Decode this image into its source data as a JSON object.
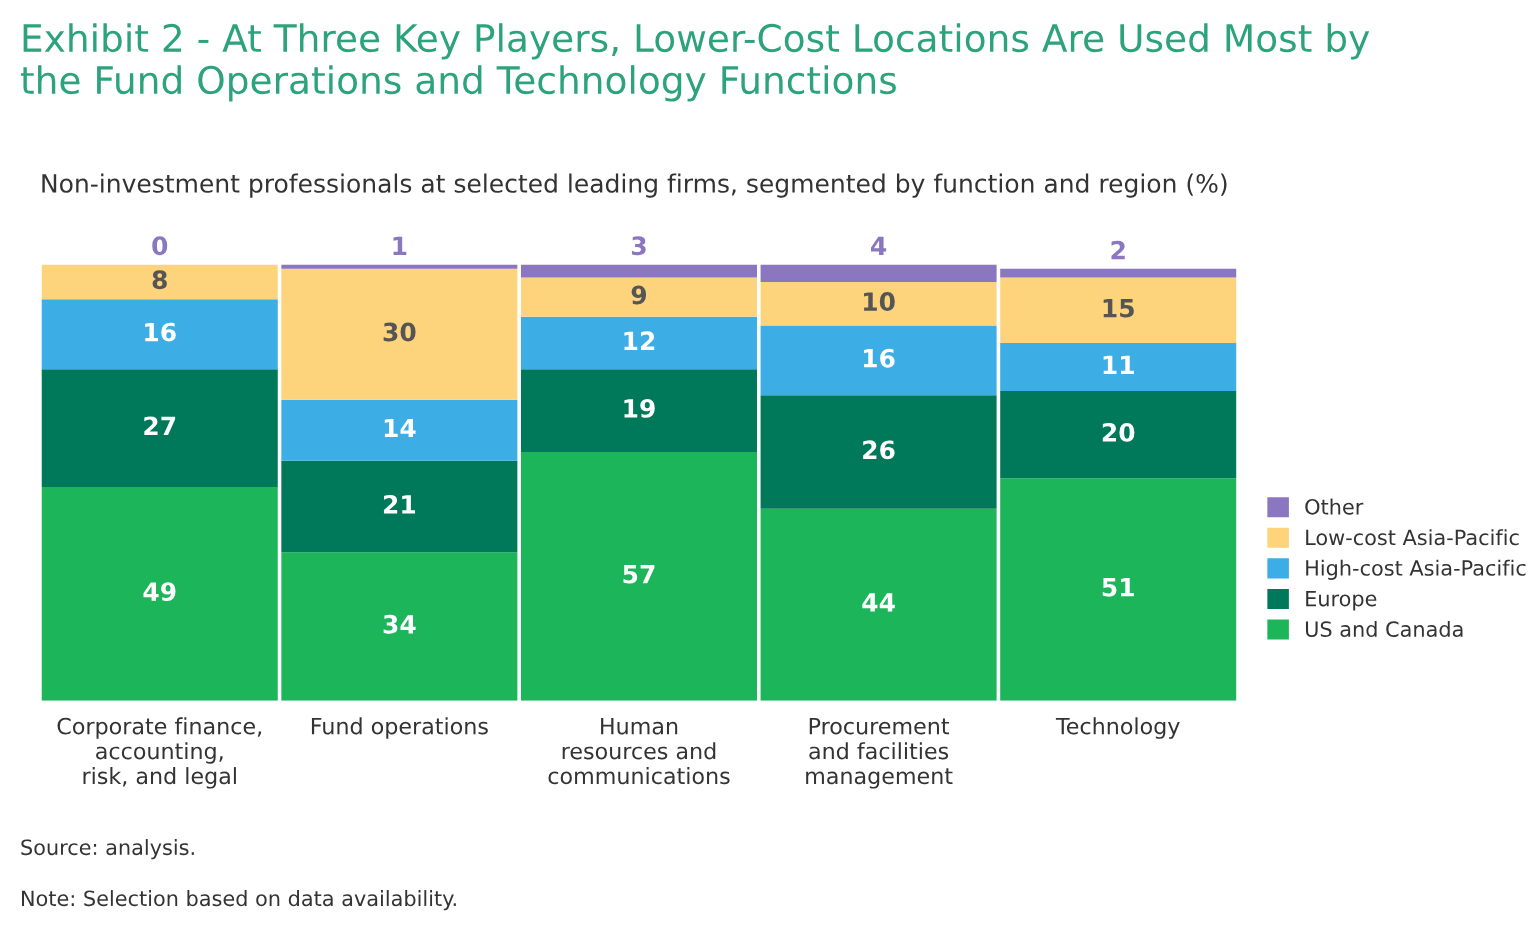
{
  "chart_data": {
    "type": "bar",
    "stacked": true,
    "title": "Exhibit 2 - At Three Key Players, Lower-Cost Locations Are Used Most by\nthe Fund Operations and Technology Functions",
    "subtitle": "Non-investment professionals at selected leading firms, segmented by function and region (%)",
    "categories": [
      "Corporate finance,\naccounting,\nrisk, and legal",
      "Fund operations",
      "Human\nresources and\ncommunications",
      "Procurement\nand facilities\nmanagement",
      "Technology"
    ],
    "series": [
      {
        "name": "US and Canada",
        "color": "#1db55a",
        "values": [
          49,
          34,
          57,
          44,
          51
        ]
      },
      {
        "name": "Europe",
        "color": "#00785a",
        "values": [
          27,
          21,
          19,
          26,
          20
        ]
      },
      {
        "name": "High-cost Asia-Pacific",
        "color": "#3dade6",
        "values": [
          16,
          14,
          12,
          16,
          11
        ]
      },
      {
        "name": "Low-cost Asia-Pacific",
        "color": "#fdd47c",
        "values": [
          8,
          30,
          9,
          10,
          15
        ]
      },
      {
        "name": "Other",
        "color": "#8b76c0",
        "values": [
          0,
          1,
          3,
          4,
          2
        ]
      }
    ],
    "ylim": [
      0,
      100
    ],
    "tick_labels": "x",
    "data_labels": true,
    "legend": "right",
    "grid": false,
    "annotations": [
      "Source: analysis.",
      "Note: Selection based on data availability."
    ]
  }
}
